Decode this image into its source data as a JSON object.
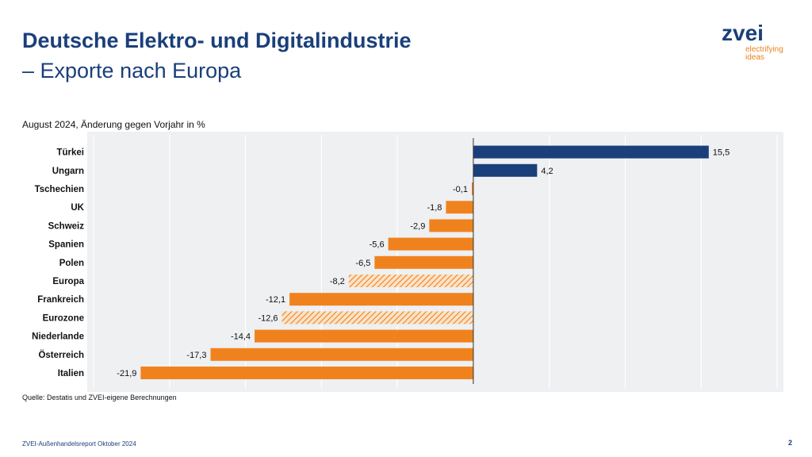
{
  "header": {
    "title": "Deutsche Elektro- und Digitalindustrie",
    "subtitle": "– Exporte nach Europa"
  },
  "logo": {
    "word": "zvei",
    "tagline_1": "electrifying",
    "tagline_2": "ideas"
  },
  "caption": "August 2024, Änderung gegen Vorjahr in %",
  "source": "Quelle: Destatis und ZVEI-eigene Berechnungen",
  "footer": {
    "report": "ZVEI-Außenhandelsreport Oktober 2024",
    "page": "2"
  },
  "colors": {
    "positive": "#1a3f7a",
    "negative": "#f0821e",
    "plot_bg": "#eef0f2",
    "text": "#1a3f7a"
  },
  "chart_data": {
    "type": "bar",
    "orientation": "horizontal",
    "categories": [
      "Türkei",
      "Ungarn",
      "Tschechien",
      "UK",
      "Schweiz",
      "Spanien",
      "Polen",
      "Europa",
      "Frankreich",
      "Eurozone",
      "Niederlande",
      "Österreich",
      "Italien"
    ],
    "values": [
      15.5,
      4.2,
      -0.1,
      -1.8,
      -2.9,
      -5.6,
      -6.5,
      -8.2,
      -12.1,
      -12.6,
      -14.4,
      -17.3,
      -21.9
    ],
    "value_labels": [
      "15,5",
      "4,2",
      "-0,1",
      "-1,8",
      "-2,9",
      "-5,6",
      "-6,5",
      "-8,2",
      "-12,1",
      "-12,6",
      "-14,4",
      "-17,3",
      "-21,9"
    ],
    "hatched": [
      "Europa",
      "Eurozone"
    ],
    "xlim": [
      -25,
      20
    ],
    "grid": true,
    "legend": "none"
  }
}
